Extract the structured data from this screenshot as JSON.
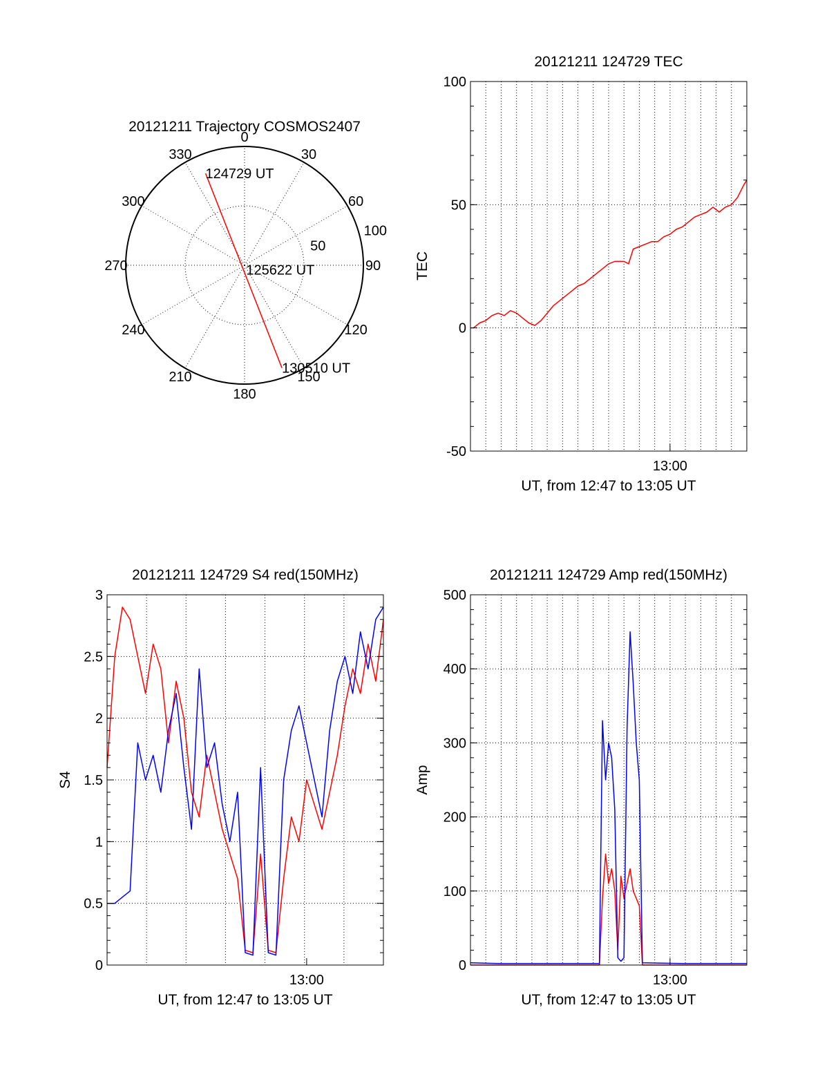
{
  "colors": {
    "red": "#ff0000",
    "blue": "#0000ff",
    "axis": "#000000",
    "background": "#ffffff"
  },
  "chart_data": [
    {
      "id": "trajectory",
      "type": "polar",
      "title": "20121211 Trajectory COSMOS2407",
      "azimuth_labels": [
        "0",
        "30",
        "60",
        "90",
        "120",
        "150",
        "180",
        "210",
        "240",
        "270",
        "300",
        "330"
      ],
      "azimuth_values": [
        0,
        30,
        60,
        90,
        120,
        150,
        180,
        210,
        240,
        270,
        300,
        330
      ],
      "radius_labels": [
        "50",
        "100"
      ],
      "radial_max": 100,
      "grid": true,
      "series": [
        {
          "color": "#ff0000",
          "points": [
            {
              "azimuth": 337,
              "radius": 84
            },
            {
              "azimuth": 160,
              "radius": 92
            }
          ]
        }
      ],
      "annotations": [
        {
          "text": "124729 UT",
          "azimuth": 337,
          "radius": 84
        },
        {
          "text": "125622 UT",
          "azimuth": 160,
          "radius": 4
        },
        {
          "text": "130510 UT",
          "azimuth": 160,
          "radius": 92
        }
      ]
    },
    {
      "id": "tec",
      "type": "line",
      "title": "20121211 124729 TEC",
      "xlabel": "UT, from 12:47 to 13:05 UT",
      "ylabel": "TEC",
      "xlim": [
        0,
        18
      ],
      "ylim": [
        -50,
        100
      ],
      "yticks": [
        "-50",
        "0",
        "50",
        "100"
      ],
      "xtick_labels": [
        {
          "label": "13:00",
          "value": 13
        }
      ],
      "grid": true,
      "series": [
        {
          "color": "#ff0000",
          "x": [
            0.2,
            0.6,
            1.0,
            1.4,
            1.8,
            2.2,
            2.6,
            3.0,
            3.4,
            3.8,
            4.2,
            4.6,
            5.0,
            5.4,
            5.8,
            6.2,
            6.6,
            7.0,
            7.4,
            7.8,
            8.2,
            8.6,
            9.0,
            9.4,
            9.8,
            10.0,
            10.3,
            10.6,
            11.0,
            11.4,
            11.8,
            12.2,
            12.6,
            13.0,
            13.4,
            13.8,
            14.2,
            14.6,
            15.0,
            15.4,
            15.8,
            16.2,
            16.6,
            17.0,
            17.4,
            17.8,
            18.0
          ],
          "y": [
            0,
            2,
            3,
            5,
            6,
            5,
            7,
            6,
            4,
            2,
            1,
            3,
            6,
            9,
            11,
            13,
            15,
            17,
            18,
            20,
            22,
            24,
            26,
            27,
            27,
            27,
            26,
            32,
            33,
            34,
            35,
            35,
            37,
            38,
            40,
            41,
            43,
            45,
            46,
            47,
            49,
            47,
            49,
            50,
            53,
            58,
            60
          ]
        }
      ]
    },
    {
      "id": "s4",
      "type": "line",
      "title": "20121211 124729 S4 red(150MHz)",
      "xlabel": "UT, from 12:47 to 13:05 UT",
      "ylabel": "S4",
      "xlim": [
        0,
        18
      ],
      "ylim": [
        0,
        3
      ],
      "yticks": [
        "0",
        "0.5",
        "1",
        "1.5",
        "2",
        "2.5",
        "3"
      ],
      "xtick_labels": [
        {
          "label": "13:00",
          "value": 13
        }
      ],
      "grid": true,
      "series": [
        {
          "color": "#ff0000",
          "x": [
            0.0,
            0.5,
            1.0,
            1.5,
            2.0,
            2.5,
            3.0,
            3.5,
            4.0,
            4.5,
            5.0,
            5.5,
            6.0,
            6.5,
            7.0,
            7.5,
            8.0,
            8.5,
            9.0,
            9.5,
            10.0,
            10.5,
            11.0,
            11.5,
            12.0,
            12.5,
            13.0,
            13.5,
            14.0,
            14.5,
            15.0,
            15.5,
            16.0,
            16.5,
            17.0,
            17.5,
            18.0
          ],
          "y": [
            1.6,
            2.5,
            2.9,
            2.8,
            2.5,
            2.2,
            2.6,
            2.4,
            1.8,
            2.3,
            2.0,
            1.4,
            1.2,
            1.7,
            1.4,
            1.1,
            0.9,
            0.7,
            0.12,
            0.1,
            0.9,
            0.12,
            0.1,
            0.7,
            1.2,
            1.0,
            1.5,
            1.3,
            1.1,
            1.4,
            1.7,
            2.1,
            2.4,
            2.2,
            2.6,
            2.3,
            2.8
          ]
        },
        {
          "color": "#0000ff",
          "x": [
            0.0,
            0.5,
            1.0,
            1.5,
            2.0,
            2.5,
            3.0,
            3.5,
            4.0,
            4.5,
            5.0,
            5.5,
            6.0,
            6.5,
            7.0,
            7.5,
            8.0,
            8.5,
            9.0,
            9.5,
            10.0,
            10.5,
            11.0,
            11.5,
            12.0,
            12.5,
            13.0,
            13.5,
            14.0,
            14.5,
            15.0,
            15.5,
            16.0,
            16.5,
            17.0,
            17.5,
            18.0
          ],
          "y": [
            0.5,
            0.5,
            0.55,
            0.6,
            1.8,
            1.5,
            1.7,
            1.4,
            1.9,
            2.2,
            1.6,
            1.1,
            2.4,
            1.6,
            1.8,
            1.3,
            1.0,
            1.4,
            0.1,
            0.08,
            1.6,
            0.1,
            0.08,
            1.5,
            1.9,
            2.1,
            1.8,
            1.5,
            1.2,
            1.9,
            2.3,
            2.5,
            2.2,
            2.7,
            2.4,
            2.8,
            2.9
          ]
        }
      ]
    },
    {
      "id": "amp",
      "type": "line",
      "title": "20121211 124729 Amp red(150MHz)",
      "xlabel": "UT, from 12:47 to 13:05 UT",
      "ylabel": "Amp",
      "xlim": [
        0,
        18
      ],
      "ylim": [
        0,
        500
      ],
      "yticks": [
        "0",
        "100",
        "200",
        "300",
        "400",
        "500"
      ],
      "xtick_labels": [
        {
          "label": "13:00",
          "value": 13
        }
      ],
      "grid": true,
      "series": [
        {
          "color": "#ff0000",
          "x": [
            0.0,
            8.4,
            8.6,
            8.8,
            9.0,
            9.2,
            9.4,
            9.6,
            9.8,
            10.0,
            10.2,
            10.4,
            10.6,
            10.8,
            11.0,
            11.2,
            18.0
          ],
          "y": [
            0,
            0,
            90,
            150,
            110,
            130,
            100,
            20,
            120,
            90,
            110,
            130,
            100,
            90,
            80,
            0,
            0
          ]
        },
        {
          "color": "#0000ff",
          "x": [
            0.0,
            2.0,
            4.0,
            6.0,
            8.4,
            8.6,
            8.8,
            9.0,
            9.2,
            9.4,
            9.6,
            9.8,
            10.0,
            10.2,
            10.4,
            10.6,
            10.8,
            11.0,
            11.2,
            14.0,
            16.0,
            18.0
          ],
          "y": [
            3,
            2,
            2,
            2,
            2,
            330,
            250,
            300,
            280,
            210,
            10,
            5,
            10,
            320,
            450,
            380,
            300,
            250,
            3,
            2,
            2,
            2
          ]
        }
      ]
    }
  ]
}
